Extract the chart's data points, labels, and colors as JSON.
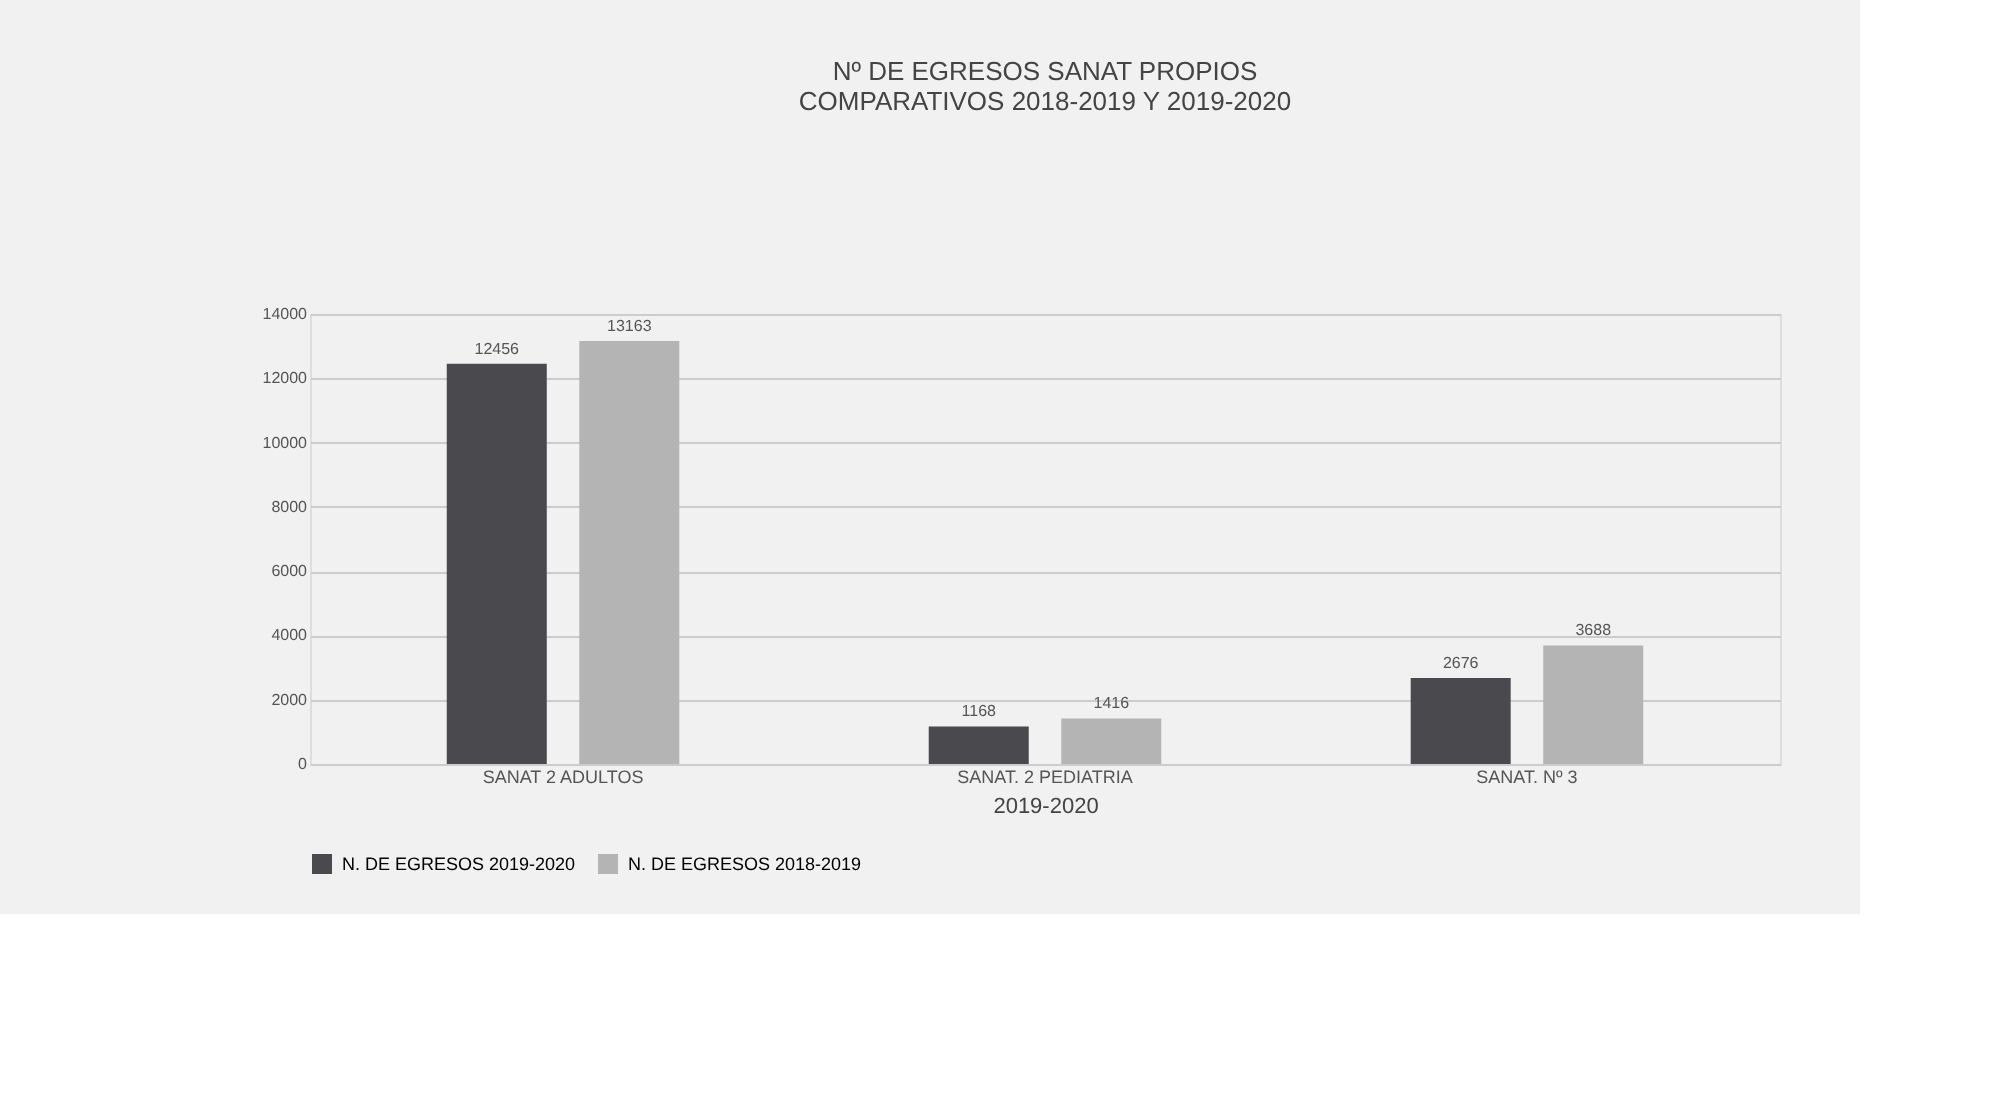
{
  "chart_data": {
    "type": "bar",
    "title": "Nº  DE  EGRESOS  SANAT PROPIOS\nCOMPARATIVOS 2018-2019 Y 2019-2020",
    "xlabel": "2019-2020",
    "categories": [
      "SANAT 2 ADULTOS",
      "SANAT. 2 PEDIATRIA",
      "SANAT.  Nº 3"
    ],
    "series": [
      {
        "name": "N. DE EGRESOS 2019-2020",
        "color": "#4a4a4e",
        "values": [
          12456,
          1168,
          2676
        ]
      },
      {
        "name": "N. DE EGRESOS 2018-2019",
        "color": "#b4b4b4",
        "values": [
          13163,
          1416,
          3688
        ]
      }
    ],
    "ylim": [
      0,
      14000
    ],
    "yticks": [
      0,
      2000,
      4000,
      6000,
      8000,
      10000,
      12000,
      14000
    ],
    "grid": "y",
    "legend": "bottom",
    "data_labels": true
  }
}
